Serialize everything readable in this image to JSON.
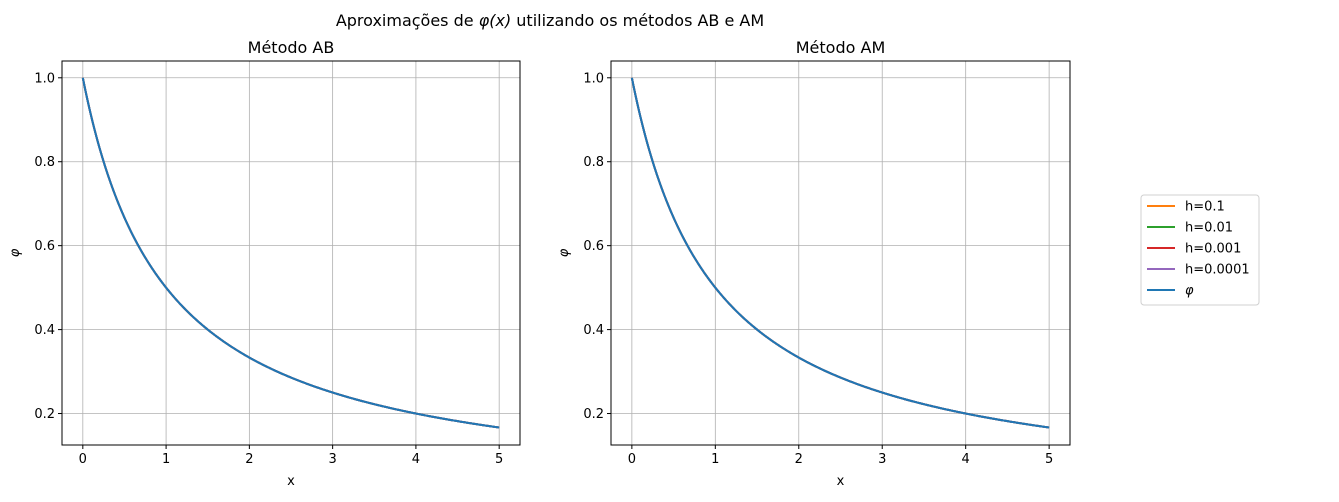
{
  "figure": {
    "suptitle_prefix": "Aproximações de ",
    "suptitle_math": "φ(x)",
    "suptitle_suffix": " utilizando os métodos AB e AM"
  },
  "legend": {
    "entries": [
      {
        "label": "h=0.1",
        "color": "#ff7f0e"
      },
      {
        "label": "h=0.01",
        "color": "#2ca02c"
      },
      {
        "label": "h=0.001",
        "color": "#d62728"
      },
      {
        "label": "h=0.0001",
        "color": "#9467bd"
      },
      {
        "label": "φ",
        "color": "#1f77b4",
        "italic": true
      }
    ],
    "placement": "outside-right"
  },
  "chart_data": [
    {
      "type": "line",
      "title": "Método AB",
      "xlabel": "x",
      "ylabel": "φ",
      "xlim": [
        -0.25,
        5.25
      ],
      "ylim": [
        0.125,
        1.04
      ],
      "xticks": [
        "0",
        "1",
        "2",
        "3",
        "4",
        "5"
      ],
      "yticks": [
        "0.2",
        "0.4",
        "0.6",
        "0.8",
        "1.0"
      ],
      "grid": true,
      "series": [
        {
          "name": "h=0.1",
          "color": "#ff7f0e",
          "function": "1/(1+x)",
          "x": [
            0,
            5
          ]
        },
        {
          "name": "h=0.01",
          "color": "#2ca02c",
          "function": "1/(1+x)",
          "x": [
            0,
            5
          ]
        },
        {
          "name": "h=0.001",
          "color": "#d62728",
          "function": "1/(1+x)",
          "x": [
            0,
            5
          ]
        },
        {
          "name": "h=0.0001",
          "color": "#9467bd",
          "function": "1/(1+x)",
          "x": [
            0,
            5
          ]
        },
        {
          "name": "φ",
          "color": "#1f77b4",
          "function": "1/(1+x)",
          "x": [
            0,
            5
          ]
        }
      ]
    },
    {
      "type": "line",
      "title": "Método AM",
      "xlabel": "x",
      "ylabel": "φ",
      "xlim": [
        -0.25,
        5.25
      ],
      "ylim": [
        0.125,
        1.04
      ],
      "xticks": [
        "0",
        "1",
        "2",
        "3",
        "4",
        "5"
      ],
      "yticks": [
        "0.2",
        "0.4",
        "0.6",
        "0.8",
        "1.0"
      ],
      "grid": true,
      "series": [
        {
          "name": "h=0.1",
          "color": "#ff7f0e",
          "function": "1/(1+x)",
          "x": [
            0,
            5
          ]
        },
        {
          "name": "h=0.01",
          "color": "#2ca02c",
          "function": "1/(1+x)",
          "x": [
            0,
            5
          ]
        },
        {
          "name": "h=0.001",
          "color": "#d62728",
          "function": "1/(1+x)",
          "x": [
            0,
            5
          ]
        },
        {
          "name": "h=0.0001",
          "color": "#9467bd",
          "function": "1/(1+x)",
          "x": [
            0,
            5
          ]
        },
        {
          "name": "φ",
          "color": "#1f77b4",
          "function": "1/(1+x)",
          "x": [
            0,
            5
          ]
        }
      ]
    }
  ]
}
